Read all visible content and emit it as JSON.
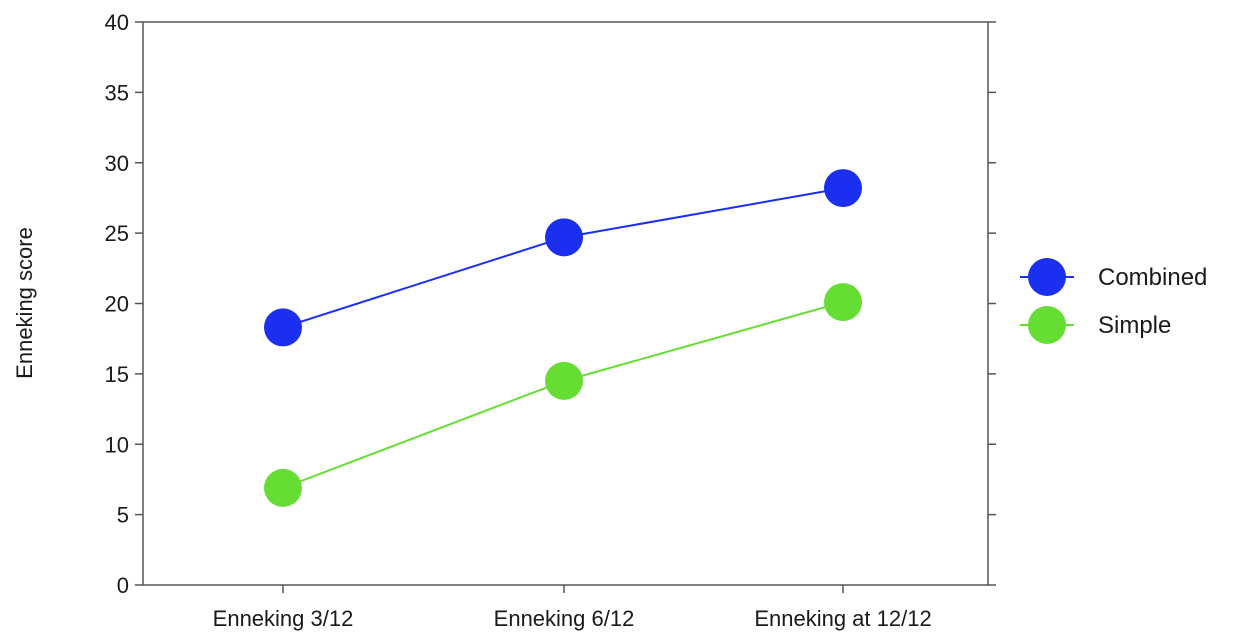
{
  "chart_data": {
    "type": "line",
    "title": "",
    "xlabel": "",
    "ylabel": "Enneking score",
    "categories": [
      "Enneking 3/12",
      "Enneking 6/12",
      "Enneking at 12/12"
    ],
    "ylim": [
      0,
      40
    ],
    "yticks": [
      0,
      5,
      10,
      15,
      20,
      25,
      30,
      35,
      40
    ],
    "grid": false,
    "legend_position": "right",
    "series": [
      {
        "name": "Combined",
        "values": [
          18.3,
          24.7,
          28.2
        ],
        "color": "#1a2ff0"
      },
      {
        "name": "Simple",
        "values": [
          6.9,
          14.5,
          20.1
        ],
        "color": "#66dd33"
      }
    ]
  }
}
